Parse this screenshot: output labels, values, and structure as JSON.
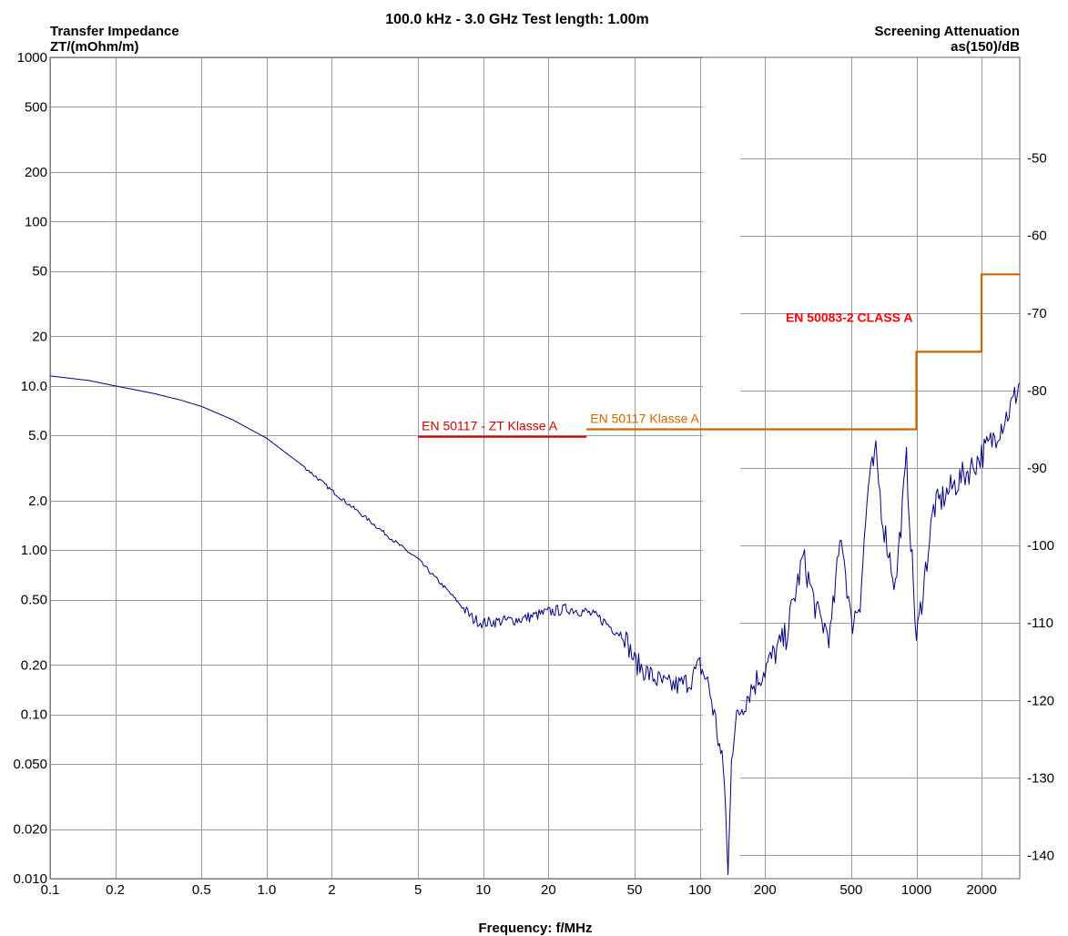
{
  "chart_data": {
    "type": "line",
    "title": "100.0 kHz - 3.0 GHz   Test length: 1.00m",
    "xlabel": "Frequency: f/MHz",
    "ylabel_left_line1": "Transfer Impedance",
    "ylabel_left_line2": "ZT/(mOhm/m)",
    "ylabel_right_line1": "Screening Attenuation",
    "ylabel_right_line2": "as(150)/dB",
    "x_scale": "log",
    "y_scale": "log",
    "xlim": [
      0.1,
      3000
    ],
    "ylim": [
      0.01,
      1000
    ],
    "y2lim": [
      -143,
      -37
    ],
    "grid": true,
    "x_ticks": [
      "0.1",
      "0.2",
      "0.5",
      "1.0",
      "2",
      "5",
      "10",
      "20",
      "50",
      "100",
      "200",
      "500",
      "1000",
      "2000"
    ],
    "x_tick_values": [
      0.1,
      0.2,
      0.5,
      1,
      2,
      5,
      10,
      20,
      50,
      100,
      200,
      500,
      1000,
      2000
    ],
    "y_ticks": [
      "1000",
      "500",
      "200",
      "100",
      "50",
      "20",
      "10.0",
      "5.0",
      "2.0",
      "1.00",
      "0.50",
      "0.20",
      "0.10",
      "0.050",
      "0.020",
      "0.010"
    ],
    "y_tick_values": [
      1000,
      500,
      200,
      100,
      50,
      20,
      10,
      5,
      2,
      1,
      0.5,
      0.2,
      0.1,
      0.05,
      0.02,
      0.01
    ],
    "y2_ticks": [
      "-50",
      "-60",
      "-70",
      "-80",
      "-90",
      "-100",
      "-110",
      "-120",
      "-130",
      "-140"
    ],
    "y2_tick_values": [
      -50,
      -60,
      -70,
      -80,
      -90,
      -100,
      -110,
      -120,
      -130,
      -140
    ],
    "series": [
      {
        "name": "",
        "color": "#00007f",
        "axis": "left",
        "x": [
          0.1,
          0.15,
          0.2,
          0.3,
          0.4,
          0.5,
          0.7,
          1.0,
          1.5,
          2.0,
          3.0,
          4.0,
          5.0,
          6.0,
          7.0,
          8.0,
          9.0,
          10,
          12,
          15,
          20,
          25,
          30,
          35,
          40,
          45,
          50,
          60,
          70,
          80,
          90,
          100,
          110,
          120,
          130,
          135,
          140,
          150,
          170,
          200,
          250,
          300,
          350,
          400,
          450,
          500,
          550,
          600,
          650,
          700,
          800,
          900,
          1000,
          1200,
          1500,
          1800,
          2000,
          2200,
          2400,
          2600,
          2800,
          3000
        ],
        "y": [
          11.5,
          10.8,
          10.0,
          9.0,
          8.2,
          7.5,
          6.2,
          4.8,
          3.2,
          2.3,
          1.5,
          1.1,
          0.88,
          0.68,
          0.55,
          0.45,
          0.38,
          0.36,
          0.37,
          0.38,
          0.42,
          0.44,
          0.42,
          0.38,
          0.33,
          0.3,
          0.21,
          0.17,
          0.15,
          0.15,
          0.16,
          0.2,
          0.15,
          0.08,
          0.04,
          0.01,
          0.06,
          0.1,
          0.14,
          0.19,
          0.3,
          0.9,
          0.4,
          0.3,
          1.3,
          0.35,
          0.5,
          2.5,
          3.8,
          1.5,
          0.6,
          3.5,
          0.28,
          1.8,
          2.5,
          3.2,
          3.8,
          4.5,
          5.5,
          6.5,
          8.0,
          10.5
        ]
      },
      {
        "name": "EN 50117 - ZT Klasse A",
        "color": "#cc0000",
        "axis": "left",
        "x": [
          5,
          30
        ],
        "y": [
          4.9,
          4.9
        ]
      },
      {
        "name": "EN 50117 Klasse A",
        "color": "#cc6600",
        "axis": "right",
        "x": [
          30,
          1000,
          1000,
          2000,
          2000,
          3000
        ],
        "y": [
          -85,
          -85,
          -75,
          -75,
          -65,
          -65
        ]
      }
    ],
    "annotations": [
      {
        "text": "EN 50083-2 CLASS A",
        "color": "#ff0000",
        "x": 1000,
        "y": 20
      }
    ]
  }
}
